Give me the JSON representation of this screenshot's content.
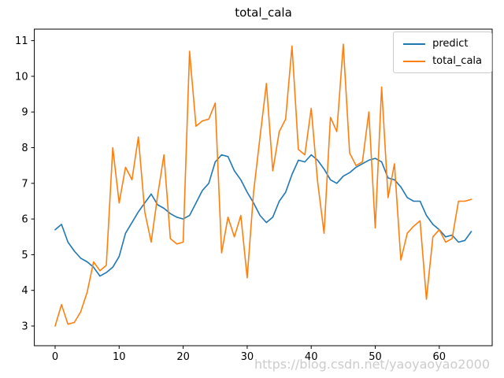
{
  "watermark": {
    "text": "https://blog.csdn.net/yaoyaoyao2000"
  },
  "chart_data": {
    "type": "line",
    "title": "total_cala",
    "xlabel": "",
    "ylabel": "",
    "grid": false,
    "legend_position": "upper right",
    "x_ticks": [
      0,
      10,
      20,
      30,
      40,
      50,
      60
    ],
    "y_ticks": [
      3,
      4,
      5,
      6,
      7,
      8,
      9,
      10,
      11
    ],
    "xlim": [
      -3.25,
      68.25
    ],
    "ylim": [
      2.45,
      11.32
    ],
    "x": [
      0,
      1,
      2,
      3,
      4,
      5,
      6,
      7,
      8,
      9,
      10,
      11,
      12,
      13,
      14,
      15,
      16,
      17,
      18,
      19,
      20,
      21,
      22,
      23,
      24,
      25,
      26,
      27,
      28,
      29,
      30,
      31,
      32,
      33,
      34,
      35,
      36,
      37,
      38,
      39,
      40,
      41,
      42,
      43,
      44,
      45,
      46,
      47,
      48,
      49,
      50,
      51,
      52,
      53,
      54,
      55,
      56,
      57,
      58,
      59,
      60,
      61,
      62,
      63,
      64,
      65
    ],
    "series": [
      {
        "name": "predict",
        "color": "#1f77b4",
        "values": [
          5.7,
          5.85,
          5.35,
          5.1,
          4.9,
          4.8,
          4.65,
          4.4,
          4.5,
          4.65,
          4.95,
          5.6,
          5.9,
          6.2,
          6.45,
          6.7,
          6.4,
          6.3,
          6.15,
          6.05,
          6.0,
          6.1,
          6.45,
          6.8,
          7.0,
          7.6,
          7.8,
          7.75,
          7.35,
          7.1,
          6.75,
          6.45,
          6.1,
          5.9,
          6.05,
          6.5,
          6.75,
          7.25,
          7.65,
          7.6,
          7.8,
          7.65,
          7.4,
          7.1,
          7.0,
          7.2,
          7.3,
          7.45,
          7.55,
          7.65,
          7.7,
          7.6,
          7.15,
          7.1,
          6.9,
          6.6,
          6.5,
          6.5,
          6.1,
          5.85,
          5.7,
          5.5,
          5.55,
          5.35,
          5.4,
          5.65
        ]
      },
      {
        "name": "total_cala",
        "color": "#ff7f0e",
        "values": [
          3.0,
          3.6,
          3.05,
          3.1,
          3.4,
          3.95,
          4.8,
          4.55,
          4.7,
          8.0,
          6.45,
          7.45,
          7.1,
          8.3,
          6.2,
          5.35,
          6.65,
          7.8,
          5.45,
          5.3,
          5.35,
          10.7,
          8.6,
          8.75,
          8.8,
          9.25,
          5.05,
          6.05,
          5.5,
          6.1,
          4.35,
          6.75,
          8.3,
          9.8,
          7.35,
          8.45,
          8.8,
          10.85,
          7.95,
          7.8,
          9.1,
          7.05,
          5.6,
          8.85,
          8.45,
          10.9,
          7.85,
          7.5,
          7.6,
          9.0,
          5.75,
          9.7,
          6.6,
          7.55,
          4.85,
          5.6,
          5.8,
          5.95,
          3.75,
          5.5,
          5.7,
          5.35,
          5.45,
          6.5,
          6.5,
          6.55
        ]
      }
    ]
  }
}
